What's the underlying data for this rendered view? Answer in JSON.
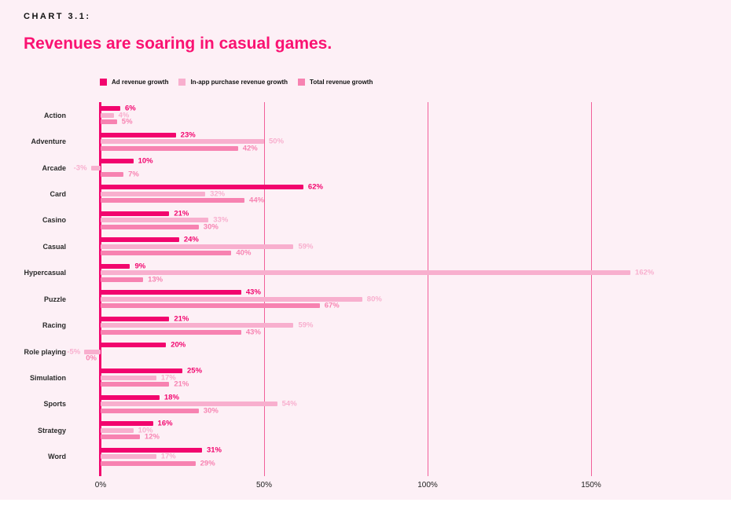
{
  "page": {
    "background": "#FDF0F6"
  },
  "header": {
    "kicker": "CHART 3.1:",
    "title": "Revenues are soaring in casual games.",
    "title_color": "#FA1272"
  },
  "legend": [
    {
      "label": "Ad revenue growth",
      "color": "#F2056E"
    },
    {
      "label": "In-app purchase revenue growth",
      "color": "#F8AFCE"
    },
    {
      "label": "Total revenue growth",
      "color": "#F782B1"
    }
  ],
  "chart_data": {
    "type": "bar",
    "orientation": "horizontal",
    "title": "Revenues are soaring in casual games.",
    "categories": [
      "Action",
      "Adventure",
      "Arcade",
      "Card",
      "Casino",
      "Casual",
      "Hypercasual",
      "Puzzle",
      "Racing",
      "Role playing",
      "Simulation",
      "Sports",
      "Strategy",
      "Word"
    ],
    "series": [
      {
        "name": "Ad revenue growth",
        "color": "#F2056E",
        "values": [
          6,
          23,
          10,
          62,
          21,
          24,
          9,
          43,
          21,
          20,
          25,
          18,
          16,
          31
        ]
      },
      {
        "name": "In-app purchase revenue growth",
        "color": "#F8AFCE",
        "values": [
          4,
          50,
          -3,
          32,
          33,
          59,
          162,
          80,
          59,
          -5,
          17,
          54,
          10,
          17
        ]
      },
      {
        "name": "Total revenue growth",
        "color": "#F782B1",
        "values": [
          5,
          42,
          7,
          44,
          30,
          40,
          13,
          67,
          43,
          0,
          21,
          30,
          12,
          29
        ]
      }
    ],
    "value_suffix": "%",
    "x_ticks": [
      {
        "label": "0%",
        "pct": 0
      },
      {
        "label": "50%",
        "pct": 50
      },
      {
        "label": "100%",
        "pct": 100
      },
      {
        "label": "150%",
        "pct": 150
      }
    ],
    "gridlines_pct": [
      50,
      100,
      150
    ],
    "xlim": [
      -8,
      170
    ],
    "grid": true,
    "legend_position": "top",
    "axis_color": "#F2056E",
    "gridline_color": "#F2609A"
  }
}
